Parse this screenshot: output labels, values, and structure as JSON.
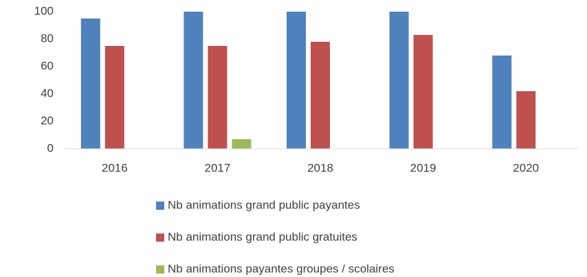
{
  "chart_data": {
    "type": "bar",
    "categories": [
      "2016",
      "2017",
      "2018",
      "2019",
      "2020"
    ],
    "series": [
      {
        "name": "Nb animations grand public payantes",
        "color": "#4f81bd",
        "values": [
          95,
          100,
          100,
          100,
          68
        ]
      },
      {
        "name": "Nb animations grand public gratuites",
        "color": "#c0504d",
        "values": [
          75,
          75,
          78,
          83,
          42
        ]
      },
      {
        "name": "Nb animations payantes groupes / scolaires",
        "color": "#9bbb59",
        "values": [
          0,
          7,
          0,
          0,
          0
        ]
      }
    ],
    "ylim": [
      0,
      100
    ],
    "yticks": [
      0,
      20,
      40,
      60,
      80,
      100
    ],
    "grid": false,
    "legend": "bottom"
  }
}
